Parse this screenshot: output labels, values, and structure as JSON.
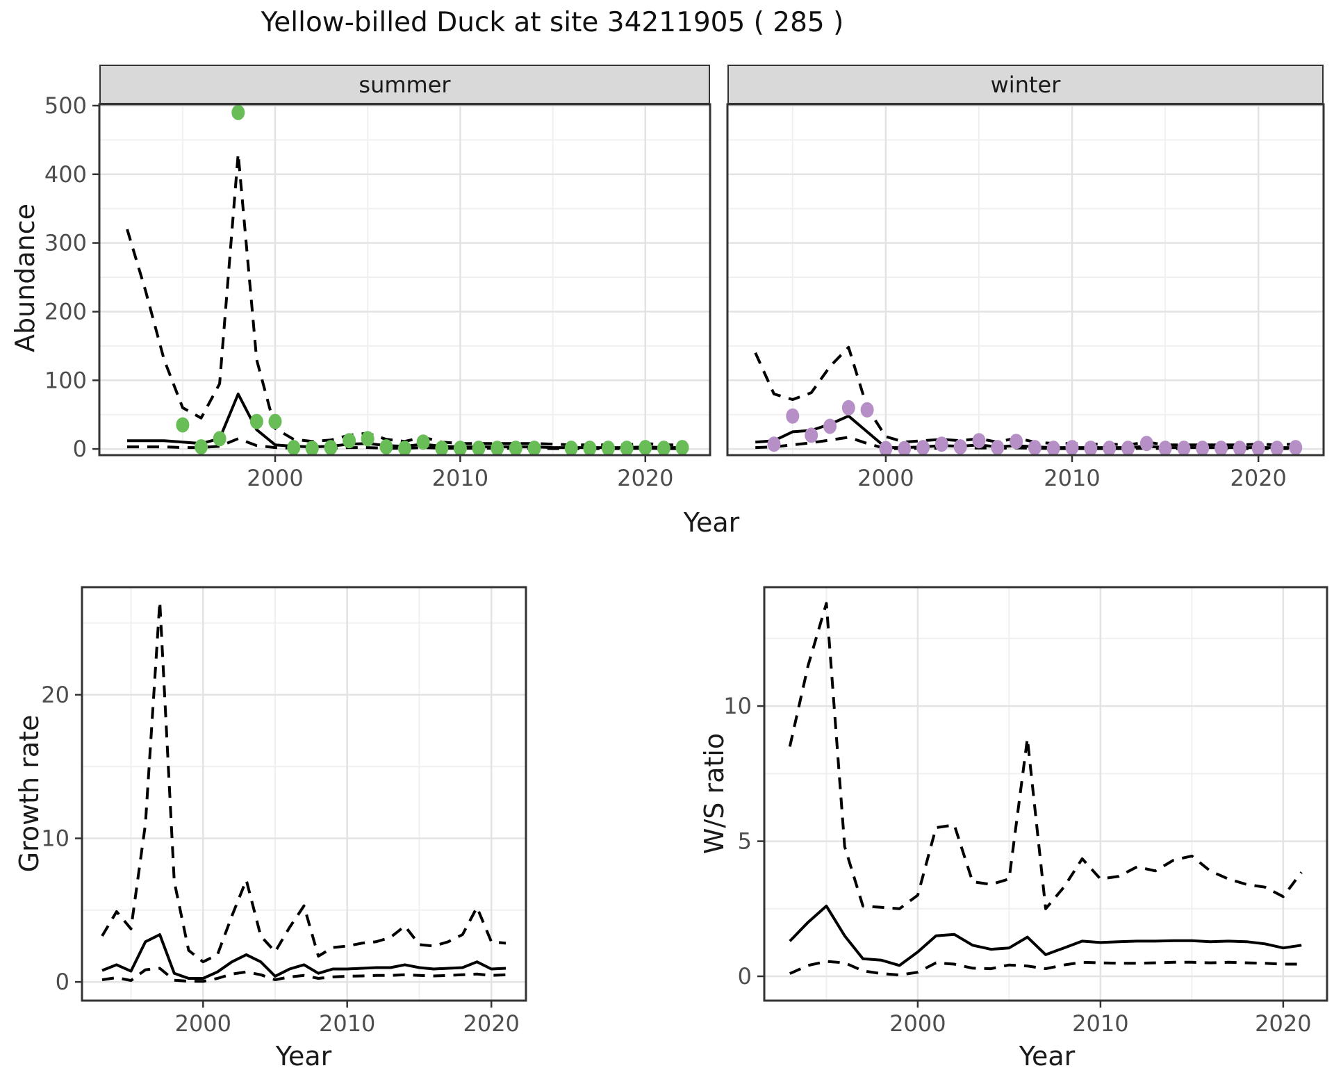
{
  "title": "Yellow-billed Duck at site 34211905 ( 285 )",
  "colors": {
    "background": "#ffffff",
    "line": "#000000",
    "grid_major": "#e3e3e3",
    "grid_minor": "#f0f0f0",
    "panel_border": "#333333",
    "tick": "#333333",
    "axis_text": "#4d4d4d",
    "strip_bg": "#d9d9d9",
    "strip_text": "#1a1a1a",
    "summer_point": "#68bd57",
    "winter_point": "#b58fc6"
  },
  "facets": [
    {
      "label": "summer"
    },
    {
      "label": "winter"
    }
  ],
  "axis_titles": {
    "abundance": "Abundance",
    "year_top": "Year",
    "growth": "Growth rate",
    "ws": "W/S ratio",
    "year_bottom_left": "Year",
    "year_bottom_right": "Year"
  },
  "chart_data": [
    {
      "type": "line",
      "name": "abundance-summer",
      "facet": "summer",
      "xlabel": "Year",
      "ylabel": "Abundance",
      "xlim": [
        1990.5,
        2023.5
      ],
      "ylim": [
        -9,
        502
      ],
      "x_ticks": [
        2000,
        2010,
        2020
      ],
      "x_minor": [
        1995,
        2005,
        2015
      ],
      "y_ticks": [
        0,
        100,
        200,
        300,
        400,
        500
      ],
      "y_minor": [
        50,
        150,
        250,
        350,
        450
      ],
      "show_y_tick_labels": true,
      "grid": true,
      "legend": "none",
      "x": [
        1992,
        1993,
        1994,
        1995,
        1996,
        1997,
        1998,
        1999,
        2000,
        2001,
        2002,
        2003,
        2004,
        2005,
        2006,
        2007,
        2008,
        2009,
        2010,
        2011,
        2012,
        2013,
        2014,
        2015,
        2016,
        2017,
        2018,
        2019,
        2020,
        2021,
        2022
      ],
      "series": [
        {
          "name": "upper-95ci",
          "style": "dashed",
          "values": [
            320,
            230,
            130,
            60,
            45,
            95,
            430,
            130,
            30,
            14,
            11,
            13,
            20,
            23,
            14,
            11,
            17,
            10,
            8,
            8,
            8,
            8,
            8,
            7,
            6,
            6,
            6,
            6,
            8,
            6,
            6
          ]
        },
        {
          "name": "median",
          "style": "solid",
          "values": [
            12,
            12,
            12,
            10,
            8,
            15,
            80,
            28,
            6,
            4,
            3,
            4,
            7,
            8,
            5,
            4,
            7,
            4,
            3,
            3,
            3,
            3,
            3,
            2,
            2,
            2,
            2,
            2,
            3,
            2,
            2
          ]
        },
        {
          "name": "lower-95ci",
          "style": "dashed",
          "values": [
            3,
            3,
            3,
            2,
            2,
            4,
            15,
            5,
            2,
            1,
            1,
            1,
            2,
            2,
            1,
            1,
            2,
            1,
            1,
            1,
            1,
            1,
            1,
            0.5,
            0.5,
            0.5,
            0.5,
            0.5,
            1,
            0.5,
            0.5
          ]
        },
        {
          "name": "observed-counts",
          "style": "points",
          "color": "#68bd57",
          "points": [
            [
              1995,
              35
            ],
            [
              1996,
              3
            ],
            [
              1997,
              15
            ],
            [
              1998,
              490
            ],
            [
              1999,
              40
            ],
            [
              2000,
              40
            ],
            [
              2001,
              2
            ],
            [
              2002,
              1
            ],
            [
              2003,
              2
            ],
            [
              2004,
              12
            ],
            [
              2005,
              15
            ],
            [
              2006,
              3
            ],
            [
              2007,
              1
            ],
            [
              2008,
              10
            ],
            [
              2009,
              1
            ],
            [
              2010,
              1
            ],
            [
              2011,
              1
            ],
            [
              2012,
              1
            ],
            [
              2013,
              1
            ],
            [
              2014,
              1
            ],
            [
              2016,
              1
            ],
            [
              2017,
              1
            ],
            [
              2018,
              1
            ],
            [
              2019,
              1
            ],
            [
              2020,
              2
            ],
            [
              2021,
              1
            ],
            [
              2022,
              2
            ]
          ]
        }
      ]
    },
    {
      "type": "line",
      "name": "abundance-winter",
      "facet": "winter",
      "xlabel": "Year",
      "ylabel": "Abundance",
      "xlim": [
        1991.5,
        2023.5
      ],
      "ylim": [
        -9,
        502
      ],
      "x_ticks": [
        2000,
        2010,
        2020
      ],
      "x_minor": [
        1995,
        2005,
        2015
      ],
      "y_ticks": [
        0,
        100,
        200,
        300,
        400,
        500
      ],
      "y_minor": [
        50,
        150,
        250,
        350,
        450
      ],
      "show_y_tick_labels": false,
      "grid": true,
      "legend": "none",
      "x": [
        1993,
        1994,
        1995,
        1996,
        1997,
        1998,
        1999,
        2000,
        2001,
        2002,
        2003,
        2004,
        2005,
        2006,
        2007,
        2008,
        2009,
        2010,
        2011,
        2012,
        2013,
        2014,
        2015,
        2016,
        2017,
        2018,
        2019,
        2020,
        2021,
        2022
      ],
      "series": [
        {
          "name": "upper-95ci",
          "style": "dashed",
          "values": [
            140,
            80,
            72,
            82,
            120,
            148,
            60,
            18,
            10,
            12,
            14,
            12,
            15,
            10,
            16,
            10,
            8,
            8,
            7,
            7,
            6,
            10,
            6,
            6,
            6,
            6,
            6,
            7,
            6,
            7
          ]
        },
        {
          "name": "median",
          "style": "solid",
          "values": [
            10,
            12,
            25,
            27,
            36,
            48,
            25,
            2,
            2,
            3,
            5,
            4,
            6,
            3,
            5,
            3,
            2,
            2,
            2,
            2,
            2,
            4,
            2,
            2,
            2,
            2,
            2,
            2,
            2,
            2
          ]
        },
        {
          "name": "lower-95ci",
          "style": "dashed",
          "values": [
            2,
            3,
            6,
            9,
            13,
            17,
            8,
            0.5,
            0.5,
            1,
            1,
            1,
            1.5,
            1,
            1.5,
            1,
            0.5,
            0.5,
            0.5,
            0.5,
            0.5,
            1,
            0.5,
            0.5,
            0.5,
            0.5,
            0.5,
            0.5,
            0.5,
            0.5
          ]
        },
        {
          "name": "observed-counts",
          "style": "points",
          "color": "#b58fc6",
          "points": [
            [
              1994,
              7
            ],
            [
              1995,
              48
            ],
            [
              1996,
              20
            ],
            [
              1997,
              33
            ],
            [
              1998,
              60
            ],
            [
              1999,
              57
            ],
            [
              2000,
              0.5
            ],
            [
              2001,
              0.5
            ],
            [
              2002,
              2
            ],
            [
              2003,
              7
            ],
            [
              2004,
              3
            ],
            [
              2005,
              12
            ],
            [
              2006,
              2
            ],
            [
              2007,
              11
            ],
            [
              2008,
              2
            ],
            [
              2009,
              1
            ],
            [
              2010,
              2
            ],
            [
              2011,
              1
            ],
            [
              2012,
              1
            ],
            [
              2013,
              1
            ],
            [
              2014,
              8
            ],
            [
              2015,
              1
            ],
            [
              2016,
              1
            ],
            [
              2017,
              1
            ],
            [
              2018,
              1
            ],
            [
              2019,
              1
            ],
            [
              2020,
              1
            ],
            [
              2021,
              1
            ],
            [
              2022,
              2
            ]
          ]
        }
      ]
    },
    {
      "type": "line",
      "name": "growth-rate",
      "facet": "",
      "xlabel": "Year",
      "ylabel": "Growth rate",
      "xlim": [
        1991.6,
        2022.4
      ],
      "ylim": [
        -1.3,
        27.5
      ],
      "x_ticks": [
        2000,
        2010,
        2020
      ],
      "x_minor": [
        1995,
        2005,
        2015
      ],
      "y_ticks": [
        0,
        10,
        20
      ],
      "y_minor": [
        5,
        15,
        25
      ],
      "show_y_tick_labels": true,
      "grid": true,
      "legend": "none",
      "x": [
        1993,
        1994,
        1995,
        1996,
        1997,
        1998,
        1999,
        2000,
        2001,
        2002,
        2003,
        2004,
        2005,
        2006,
        2007,
        2008,
        2009,
        2010,
        2011,
        2012,
        2013,
        2014,
        2015,
        2016,
        2017,
        2018,
        2019,
        2020,
        2021
      ],
      "series": [
        {
          "name": "upper-95ci",
          "style": "dashed",
          "values": [
            3.2,
            4.9,
            3.7,
            11,
            26.5,
            7,
            2.2,
            1.4,
            1.9,
            4.6,
            7.1,
            3.2,
            2.1,
            3.8,
            5.3,
            1.8,
            2.4,
            2.5,
            2.7,
            2.8,
            3.1,
            3.9,
            2.6,
            2.5,
            2.8,
            3.3,
            5.2,
            2.8,
            2.7
          ]
        },
        {
          "name": "median",
          "style": "solid",
          "values": [
            0.8,
            1.2,
            0.75,
            2.8,
            3.3,
            0.6,
            0.25,
            0.25,
            0.7,
            1.4,
            1.9,
            1.4,
            0.4,
            0.9,
            1.2,
            0.6,
            0.9,
            0.9,
            0.95,
            1,
            1,
            1.2,
            1,
            0.9,
            0.95,
            1,
            1.4,
            0.9,
            0.95
          ]
        },
        {
          "name": "lower-95ci",
          "style": "dashed",
          "values": [
            0.15,
            0.3,
            0.1,
            0.85,
            0.95,
            0.12,
            0.05,
            0.04,
            0.25,
            0.55,
            0.7,
            0.5,
            0.15,
            0.35,
            0.45,
            0.25,
            0.35,
            0.4,
            0.42,
            0.45,
            0.45,
            0.5,
            0.45,
            0.42,
            0.45,
            0.5,
            0.55,
            0.45,
            0.5
          ]
        }
      ]
    },
    {
      "type": "line",
      "name": "winter-summer-ratio",
      "facet": "",
      "xlabel": "Year",
      "ylabel": "W/S ratio",
      "xlim": [
        1991.6,
        2022.4
      ],
      "ylim": [
        -0.9,
        14.4
      ],
      "x_ticks": [
        2000,
        2010,
        2020
      ],
      "x_minor": [
        1995,
        2005,
        2015
      ],
      "y_ticks": [
        0,
        5,
        10
      ],
      "y_minor": [
        2.5,
        7.5,
        12.5
      ],
      "show_y_tick_labels": true,
      "grid": true,
      "legend": "none",
      "x": [
        1993,
        1994,
        1995,
        1996,
        1997,
        1998,
        1999,
        2000,
        2001,
        2002,
        2003,
        2004,
        2005,
        2006,
        2007,
        2008,
        2009,
        2010,
        2011,
        2012,
        2013,
        2014,
        2015,
        2016,
        2017,
        2018,
        2019,
        2020,
        2021
      ],
      "series": [
        {
          "name": "upper-95ci",
          "style": "dashed",
          "values": [
            8.5,
            11.5,
            13.8,
            4.8,
            2.6,
            2.55,
            2.5,
            3,
            5.5,
            5.6,
            3.5,
            3.4,
            3.6,
            8.8,
            2.5,
            3.3,
            4.35,
            3.6,
            3.7,
            4.05,
            3.9,
            4.3,
            4.45,
            3.9,
            3.6,
            3.4,
            3.3,
            2.95,
            3.85
          ]
        },
        {
          "name": "median",
          "style": "solid",
          "values": [
            1.3,
            2,
            2.6,
            1.5,
            0.65,
            0.6,
            0.4,
            0.9,
            1.5,
            1.55,
            1.15,
            1,
            1.05,
            1.45,
            0.8,
            1.05,
            1.3,
            1.25,
            1.28,
            1.3,
            1.3,
            1.32,
            1.32,
            1.28,
            1.3,
            1.28,
            1.2,
            1.05,
            1.15
          ]
        },
        {
          "name": "lower-95ci",
          "style": "dashed",
          "values": [
            0.1,
            0.4,
            0.55,
            0.5,
            0.2,
            0.1,
            0.05,
            0.15,
            0.5,
            0.45,
            0.3,
            0.28,
            0.42,
            0.38,
            0.28,
            0.42,
            0.52,
            0.5,
            0.48,
            0.48,
            0.5,
            0.52,
            0.52,
            0.5,
            0.52,
            0.5,
            0.48,
            0.45,
            0.45
          ]
        }
      ]
    }
  ]
}
